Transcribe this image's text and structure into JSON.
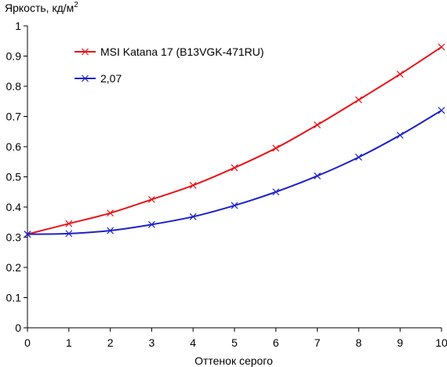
{
  "chart_data": {
    "type": "line",
    "title": "",
    "ylabel": "Яркость, кд/м",
    "ylabel_superscript": "2",
    "xlabel": "Оттенок серого",
    "xlim": [
      0,
      10
    ],
    "ylim": [
      0,
      1
    ],
    "x_ticks": [
      "0",
      "1",
      "2",
      "3",
      "4",
      "5",
      "6",
      "7",
      "8",
      "9",
      "10"
    ],
    "y_ticks": [
      "0",
      "0.1",
      "0.2",
      "0.3",
      "0.4",
      "0.5",
      "0.6",
      "0.7",
      "0.8",
      "0.9",
      "1"
    ],
    "grid": false,
    "legend_position": "top-left",
    "x": [
      0,
      1,
      2,
      3,
      4,
      5,
      6,
      7,
      8,
      9,
      10
    ],
    "series": [
      {
        "name": "MSI Katana 17 (B13VGK-471RU)",
        "color": "#e8141a",
        "marker": "x",
        "values": [
          0.31,
          0.345,
          0.38,
          0.425,
          0.472,
          0.53,
          0.595,
          0.672,
          0.755,
          0.84,
          0.93
        ]
      },
      {
        "name": "2,07",
        "color": "#1c22c8",
        "marker": "x",
        "values": [
          0.31,
          0.312,
          0.322,
          0.342,
          0.368,
          0.405,
          0.45,
          0.503,
          0.565,
          0.638,
          0.72
        ]
      }
    ]
  }
}
